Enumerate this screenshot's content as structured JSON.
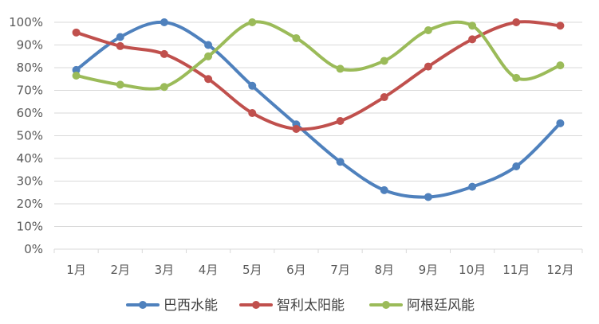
{
  "chart_data": {
    "type": "line",
    "smooth": true,
    "title": "",
    "xlabel": "",
    "ylabel": "",
    "categories": [
      "1月",
      "2月",
      "3月",
      "4月",
      "5月",
      "6月",
      "7月",
      "8月",
      "9月",
      "10月",
      "11月",
      "12月"
    ],
    "y_ticks": [
      "0%",
      "10%",
      "20%",
      "30%",
      "40%",
      "50%",
      "60%",
      "70%",
      "80%",
      "90%",
      "100%"
    ],
    "ylim": [
      0,
      100
    ],
    "y_unit": "%",
    "grid": true,
    "legend_position": "bottom",
    "series": [
      {
        "name": "巴西水能",
        "color": "#4f81bd",
        "values": [
          79,
          93.5,
          100,
          90,
          72,
          55,
          38.5,
          26,
          23,
          27.5,
          36.5,
          55.5
        ]
      },
      {
        "name": "智利太阳能",
        "color": "#c0504d",
        "values": [
          95.5,
          89.5,
          86,
          75,
          60,
          53,
          56.5,
          67,
          80.5,
          92.5,
          100,
          98.5
        ]
      },
      {
        "name": "阿根廷风能",
        "color": "#9bbb59",
        "values": [
          76.5,
          72.5,
          71.5,
          85,
          100,
          93,
          79.5,
          83,
          96.5,
          98.5,
          75.5,
          81
        ]
      }
    ]
  }
}
